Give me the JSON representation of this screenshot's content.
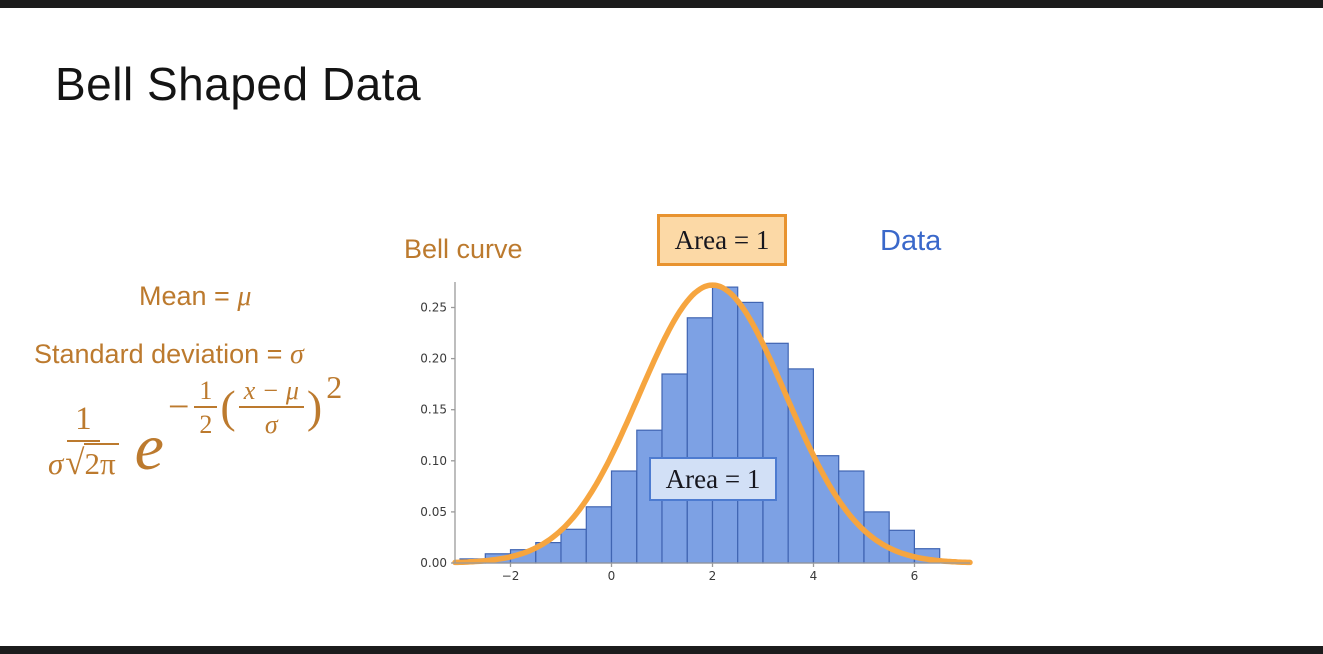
{
  "title": "Bell Shaped Data",
  "annotations": {
    "mean_prefix": "Mean = ",
    "mean_symbol": "μ",
    "std_prefix": "Standard deviation = ",
    "std_symbol": "σ",
    "formula": {
      "num": "1",
      "den_sigma": "σ",
      "sqrt_sign": "√",
      "sqrt_radicand": "2π",
      "base": "e",
      "minus": "−",
      "half_num": "1",
      "half_den": "2",
      "open_paren": "(",
      "inner_num": "x − μ",
      "inner_den": "σ",
      "close_paren": ")",
      "power": "2"
    }
  },
  "chart": {
    "bell_curve_label": "Bell curve",
    "data_label": "Data",
    "curve_area_label": "Area = 1",
    "data_area_label": "Area = 1"
  },
  "chart_data": {
    "type": "histogram+line",
    "title": "",
    "xlabel": "",
    "ylabel": "",
    "xlim": [
      -3.1,
      7.1
    ],
    "ylim": [
      0,
      0.275
    ],
    "bin_width": 0.5,
    "x_ticks": [
      {
        "v": -2,
        "label": "−2"
      },
      {
        "v": 0,
        "label": "0"
      },
      {
        "v": 2,
        "label": "2"
      },
      {
        "v": 4,
        "label": "4"
      },
      {
        "v": 6,
        "label": "6"
      }
    ],
    "y_ticks": [
      {
        "v": 0,
        "label": "0.00"
      },
      {
        "v": 0.05,
        "label": "0.05"
      },
      {
        "v": 0.1,
        "label": "0.10"
      },
      {
        "v": 0.15,
        "label": "0.15"
      },
      {
        "v": 0.2,
        "label": "0.20"
      },
      {
        "v": 0.25,
        "label": "0.25"
      }
    ],
    "bars": [
      [
        -3.0,
        0.004
      ],
      [
        -2.5,
        0.009
      ],
      [
        -2.0,
        0.013
      ],
      [
        -1.5,
        0.02
      ],
      [
        -1.0,
        0.033
      ],
      [
        -0.5,
        0.055
      ],
      [
        0.0,
        0.09
      ],
      [
        0.5,
        0.13
      ],
      [
        1.0,
        0.185
      ],
      [
        1.5,
        0.24
      ],
      [
        2.0,
        0.27
      ],
      [
        2.5,
        0.255
      ],
      [
        3.0,
        0.215
      ],
      [
        3.5,
        0.19
      ],
      [
        4.0,
        0.105
      ],
      [
        4.5,
        0.09
      ],
      [
        5.0,
        0.05
      ],
      [
        5.5,
        0.032
      ],
      [
        6.0,
        0.014
      ]
    ],
    "curve": {
      "shape": "gaussian",
      "mean": 2.0,
      "sigma": 1.45,
      "peak": 0.272
    },
    "legend": [
      "Bell curve",
      "Data"
    ]
  },
  "colors": {
    "accent-orange": "#bc7a2e",
    "label-blue": "#3a68ca",
    "curve-orange": "#f6a53f",
    "bar-fill": "#7da1e4",
    "bar-edge": "#4065b2",
    "box-orange-bg": "#fcd9a6",
    "box-orange-border": "#e8932f",
    "box-blue-bg": "#d2e0f6",
    "box-blue-border": "#4d7bd0",
    "axis-gray": "#9a9a9a",
    "tick-text": "#3a3a3a"
  }
}
